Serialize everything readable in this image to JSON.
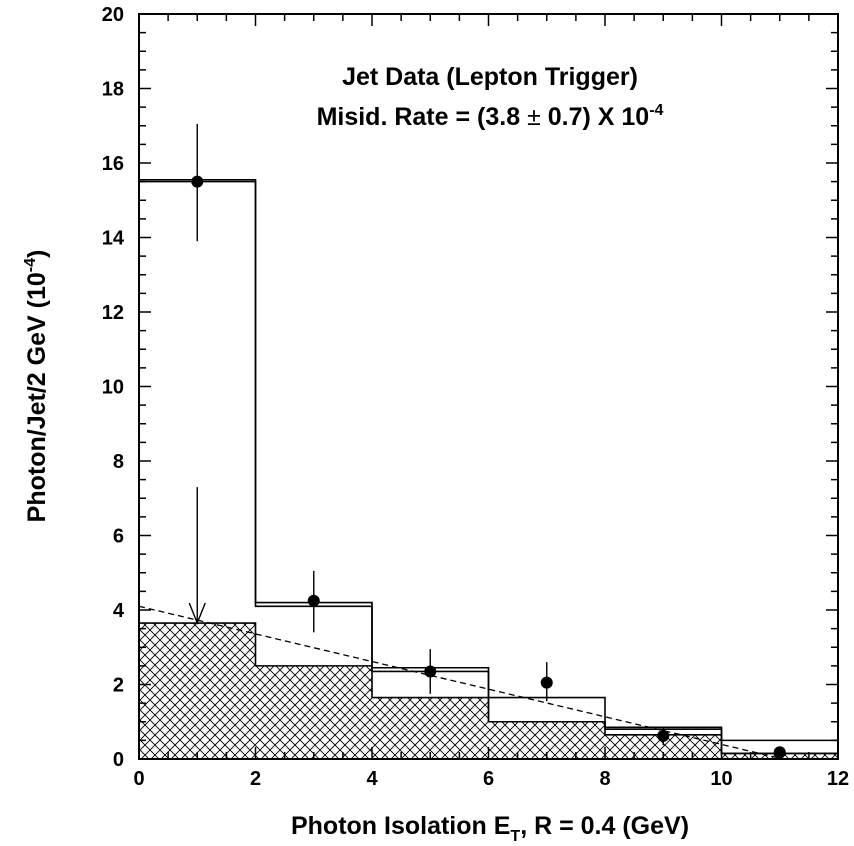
{
  "chart_data": {
    "type": "histogram",
    "xlabel": {
      "main": "Photon Isolation E",
      "sub": "T",
      "rest": ", R = 0.4  (GeV)"
    },
    "ylabel": {
      "main": "Photon/Jet/2 GeV (10",
      "sup": "-4",
      "rest": ")"
    },
    "annotation": {
      "line1": "Jet Data (Lepton Trigger)",
      "line2_main": "Misid. Rate = (3.8 ",
      "line2_pm": "±",
      "line2_mid": " 0.7) X 10",
      "line2_sup": "-4"
    },
    "xlim": [
      0,
      12
    ],
    "ylim": [
      0,
      20
    ],
    "x_ticks": [
      0,
      2,
      4,
      6,
      8,
      10,
      12
    ],
    "y_ticks": [
      0,
      2,
      4,
      6,
      8,
      10,
      12,
      14,
      16,
      18,
      20
    ],
    "x_minor_step": 0.5,
    "y_minor_step": 0.5,
    "bin_edges": [
      0,
      2,
      4,
      6,
      8,
      10,
      12
    ],
    "series": [
      {
        "kind": "histogram-upper",
        "values": [
          15.55,
          4.2,
          2.45,
          1.65,
          0.85,
          0.5
        ]
      },
      {
        "kind": "histogram-lower",
        "values": [
          15.5,
          4.1,
          2.35,
          1.0,
          0.8,
          0.15
        ]
      },
      {
        "kind": "histogram-hatched",
        "values": [
          3.65,
          2.5,
          1.65,
          1.0,
          0.65,
          0.15
        ]
      }
    ],
    "points": [
      {
        "x": 1,
        "y": 15.5,
        "yerr_low": 1.6,
        "yerr_high": 1.55
      },
      {
        "x": 3,
        "y": 4.25,
        "yerr_low": 0.85,
        "yerr_high": 0.8
      },
      {
        "x": 5,
        "y": 2.35,
        "yerr_low": 0.6,
        "yerr_high": 0.6
      },
      {
        "x": 7,
        "y": 2.05,
        "yerr_low": 0.5,
        "yerr_high": 0.55
      },
      {
        "x": 9,
        "y": 0.62,
        "yerr_low": 0.25,
        "yerr_high": 0.25
      },
      {
        "x": 11,
        "y": 0.18,
        "yerr_low": 0.1,
        "yerr_high": 0.1
      }
    ],
    "upper_limit_arrow": {
      "x": 1,
      "y_top": 7.3,
      "y_bottom": 3.65
    },
    "dashed_line": {
      "x": [
        0,
        12
      ],
      "y": [
        4.1,
        -0.35
      ]
    }
  }
}
